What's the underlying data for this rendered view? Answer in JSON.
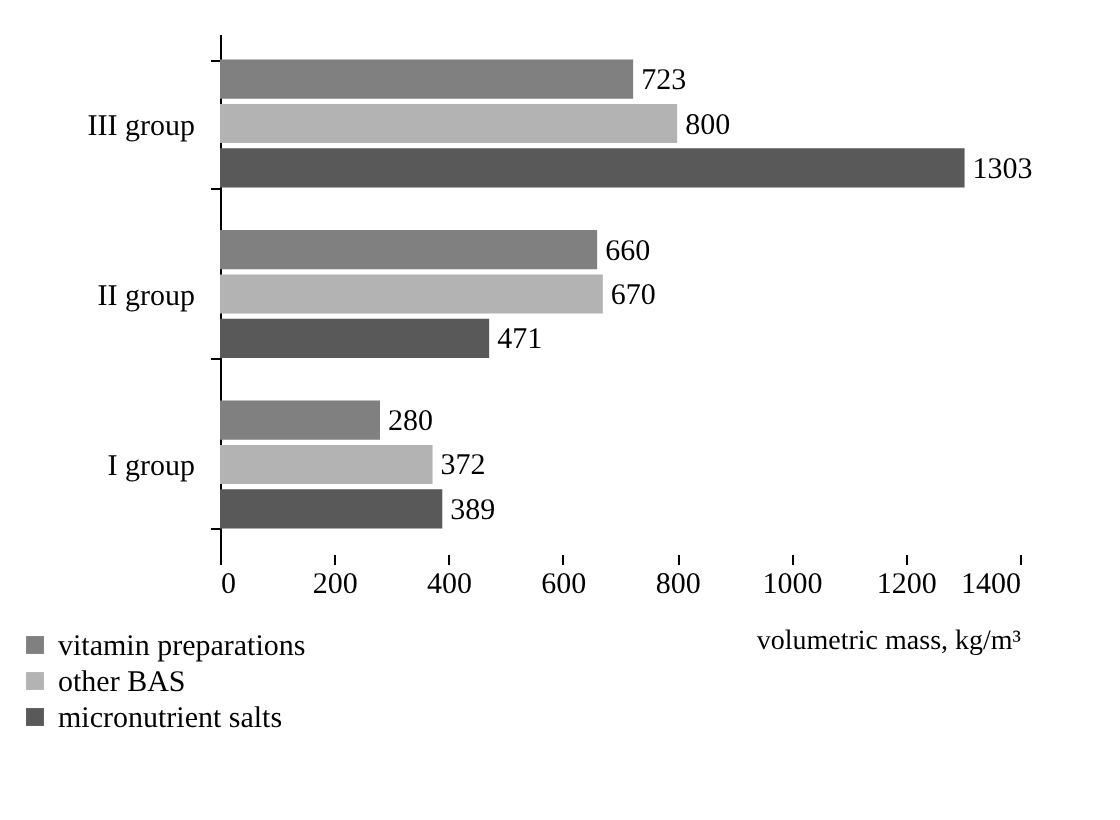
{
  "chart_data": {
    "type": "bar",
    "orientation": "horizontal",
    "xlabel": "volumetric mass, kg/m³",
    "categories": [
      "III group",
      "II group",
      "I group"
    ],
    "series": [
      {
        "name": "vitamin preparations",
        "color": "#808080",
        "values": [
          723,
          660,
          280
        ]
      },
      {
        "name": "other BAS",
        "color": "#b3b3b3",
        "values": [
          800,
          670,
          372
        ]
      },
      {
        "name": "micronutrient salts",
        "color": "#595959",
        "values": [
          1303,
          471,
          389
        ]
      }
    ],
    "xlim": [
      0,
      1400
    ],
    "xticks": [
      0,
      200,
      400,
      600,
      800,
      1000,
      1200,
      1400
    ],
    "grid": false,
    "legend": "bottom left",
    "data_labels": true
  }
}
